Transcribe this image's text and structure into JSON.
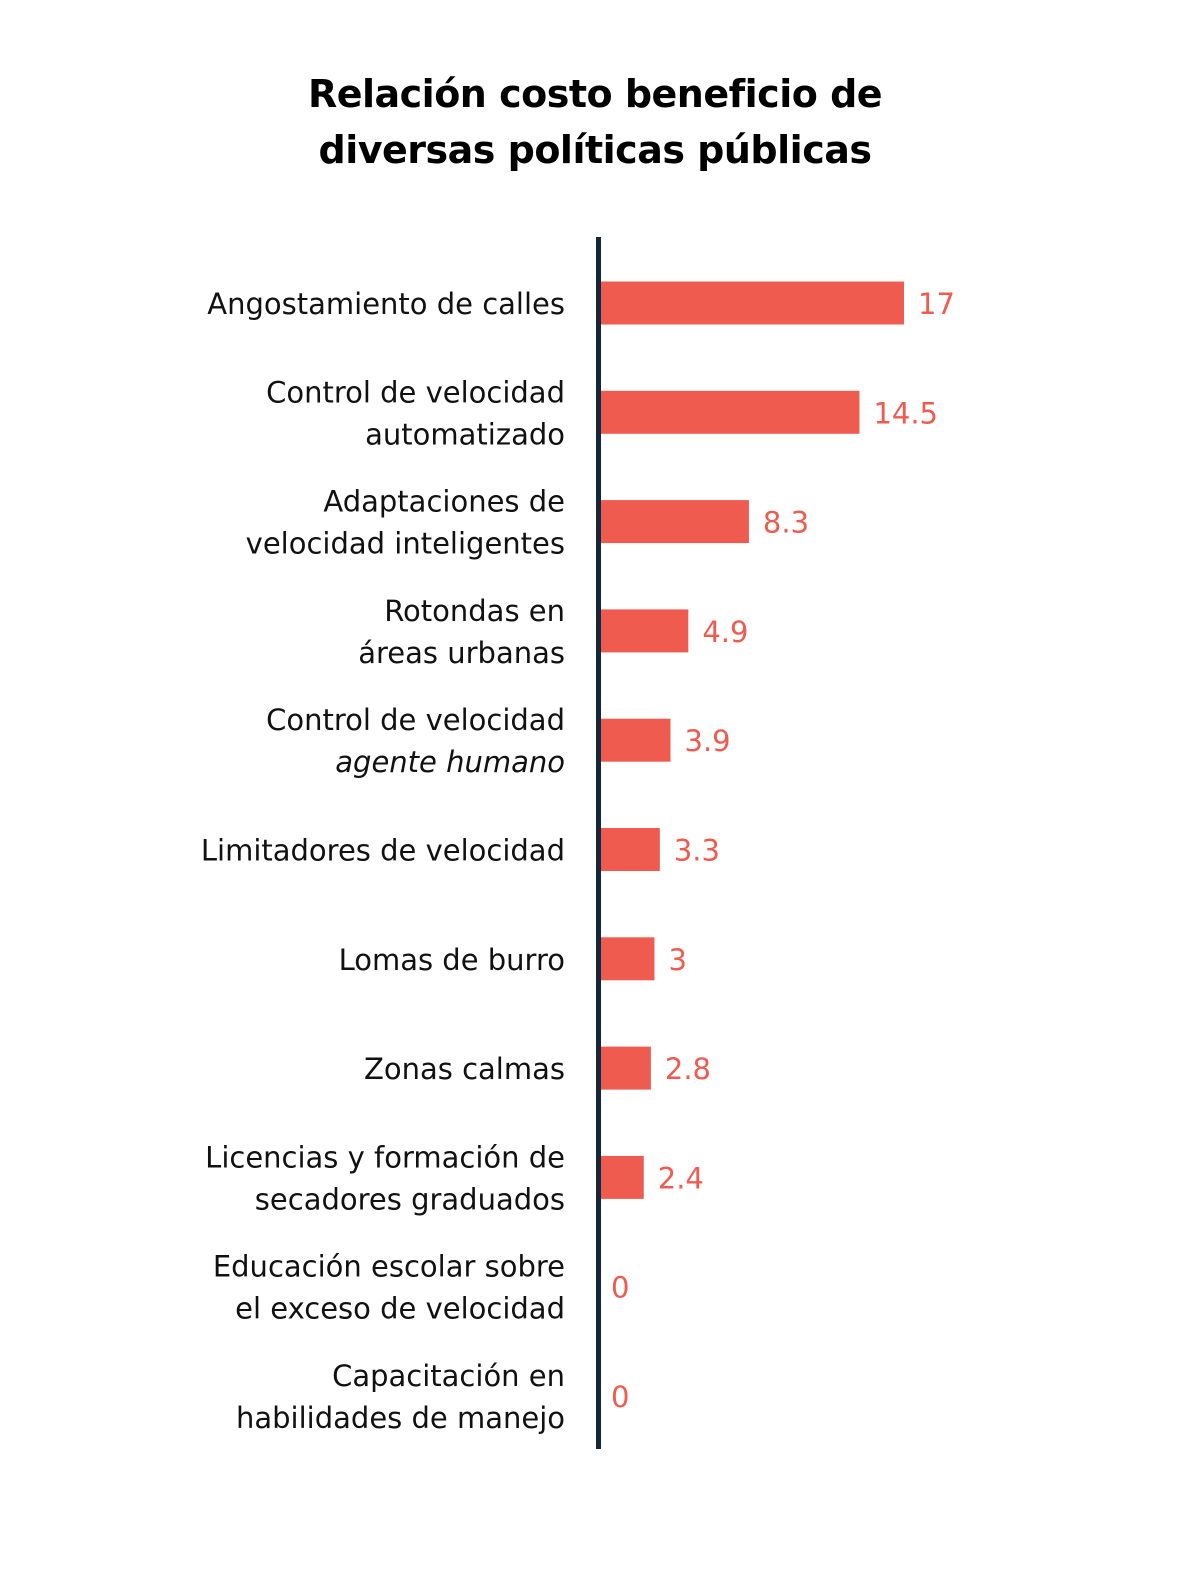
{
  "chart_data": {
    "type": "bar",
    "orientation": "horizontal",
    "title_lines": [
      "Relación costo beneficio de",
      "diversas políticas públicas"
    ],
    "categories": [
      {
        "lines": [
          "Angostamiento de calles"
        ]
      },
      {
        "lines": [
          "Control de velocidad",
          "automatizado"
        ]
      },
      {
        "lines": [
          "Adaptaciones de",
          "velocidad inteligentes"
        ]
      },
      {
        "lines": [
          "Rotondas en ",
          "áreas urbanas"
        ]
      },
      {
        "lines": [
          "Control de velocidad",
          "agente humano"
        ],
        "italic_line": 1
      },
      {
        "lines": [
          "Limitadores de velocidad"
        ]
      },
      {
        "lines": [
          "Lomas de burro"
        ]
      },
      {
        "lines": [
          "Zonas calmas"
        ]
      },
      {
        "lines": [
          "Licencias y formación de",
          "secadores graduados"
        ]
      },
      {
        "lines": [
          "Educación escolar sobre",
          "el exceso de velocidad"
        ]
      },
      {
        "lines": [
          "Capacitación en",
          "habilidades de manejo"
        ]
      }
    ],
    "values": [
      17,
      14.5,
      8.3,
      4.9,
      3.9,
      3.3,
      3,
      2.8,
      2.4,
      0,
      0
    ],
    "value_labels": [
      "17",
      "14.5",
      "8.3",
      "4.9",
      "3.9",
      "3.3",
      "3",
      "2.8",
      "2.4",
      "0",
      "0"
    ],
    "xlim": [
      0,
      17
    ],
    "grid": false,
    "legend": "none",
    "colors": {
      "bar": "#ef5b4f",
      "value_label": "#ef5b4f",
      "axis": "#14263a",
      "text": "#111111"
    }
  }
}
